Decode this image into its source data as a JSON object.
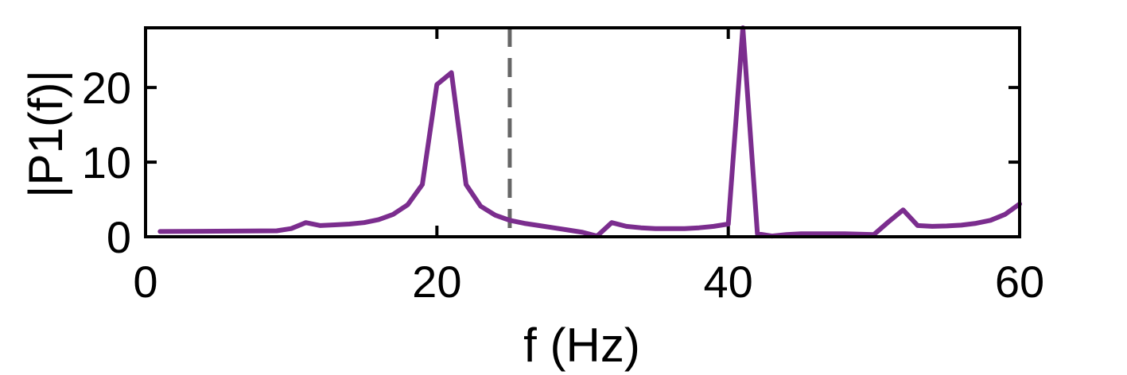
{
  "chart_data": {
    "type": "line",
    "title": "",
    "xlabel": "f (Hz)",
    "ylabel": "|P1(f)|",
    "xlim": [
      0,
      60
    ],
    "ylim": [
      0,
      28
    ],
    "xticks": [
      0,
      20,
      40,
      60
    ],
    "yticks": [
      0,
      10,
      20
    ],
    "grid": false,
    "legend": "none",
    "series": [
      {
        "color": "#7b2d8e",
        "x": [
          1,
          9,
          10,
          11,
          12,
          13,
          14,
          15,
          16,
          17,
          18,
          19,
          20,
          21,
          22,
          23,
          24,
          25,
          26,
          27,
          28,
          29,
          30,
          31,
          32,
          33,
          34,
          35,
          36,
          37,
          38,
          39,
          40,
          41,
          42,
          43,
          44,
          45,
          46,
          47,
          48,
          49,
          50,
          51,
          52,
          53,
          54,
          55,
          56,
          57,
          58,
          59,
          60
        ],
        "y": [
          0.7,
          0.8,
          1.1,
          1.9,
          1.5,
          1.6,
          1.7,
          1.9,
          2.3,
          3.0,
          4.3,
          7.0,
          20.4,
          22.0,
          7.0,
          4.1,
          2.9,
          2.2,
          1.8,
          1.5,
          1.2,
          0.9,
          0.6,
          0.1,
          1.9,
          1.4,
          1.2,
          1.1,
          1.1,
          1.1,
          1.2,
          1.4,
          1.7,
          28.0,
          0.4,
          0.1,
          0.3,
          0.4,
          0.4,
          0.4,
          0.4,
          0.35,
          0.3,
          2.0,
          3.6,
          1.5,
          1.4,
          1.45,
          1.55,
          1.8,
          2.2,
          3.0,
          4.4
        ]
      }
    ],
    "reference_lines": [
      {
        "axis": "x",
        "value": 25,
        "style": "dashed",
        "color": "#666666"
      }
    ]
  }
}
